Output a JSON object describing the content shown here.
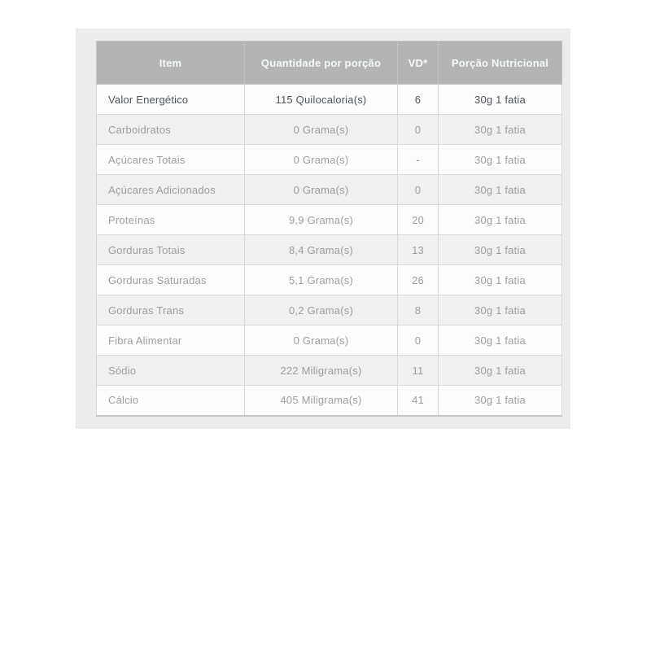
{
  "colors": {
    "page_bg": "#ffffff",
    "panel_bg": "#ececec",
    "header_bg": "#b4b4b4",
    "header_text": "#f2f9f9",
    "row_bg": "#fdfdfd",
    "row_alt_bg": "#f0f0f0",
    "text": "#9b9ea3",
    "emphasis_text": "#4e555d",
    "border": "#d9d9d9",
    "outer_border": "#c6c6c6"
  },
  "table": {
    "columns": [
      {
        "key": "item",
        "label": "Item"
      },
      {
        "key": "quantity",
        "label": "Quantidade por porção"
      },
      {
        "key": "vd",
        "label": "VD*"
      },
      {
        "key": "portion",
        "label": "Porção Nutricional"
      }
    ],
    "rows": [
      {
        "item": "Valor Energético",
        "quantity": "115 Quilocaloria(s)",
        "vd": "6",
        "portion": "30g 1 fatia",
        "emphasis": true
      },
      {
        "item": "Carboidratos",
        "quantity": "0 Grama(s)",
        "vd": "0",
        "portion": "30g 1 fatia"
      },
      {
        "item": "Açúcares Totais",
        "quantity": "0 Grama(s)",
        "vd": "-",
        "portion": "30g 1 fatia"
      },
      {
        "item": "Açúcares Adicionados",
        "quantity": "0 Grama(s)",
        "vd": "0",
        "portion": "30g 1 fatia"
      },
      {
        "item": "Proteínas",
        "quantity": "9,9 Grama(s)",
        "vd": "20",
        "portion": "30g 1 fatia"
      },
      {
        "item": "Gorduras Totais",
        "quantity": "8,4 Grama(s)",
        "vd": "13",
        "portion": "30g 1 fatia"
      },
      {
        "item": "Gorduras Saturadas",
        "quantity": "5,1 Grama(s)",
        "vd": "26",
        "portion": "30g 1 fatia"
      },
      {
        "item": "Gorduras Trans",
        "quantity": "0,2 Grama(s)",
        "vd": "8",
        "portion": "30g 1 fatia"
      },
      {
        "item": "Fibra Alimentar",
        "quantity": "0 Grama(s)",
        "vd": "0",
        "portion": "30g 1 fatia"
      },
      {
        "item": "Sódio",
        "quantity": "222 Miligrama(s)",
        "vd": "11",
        "portion": "30g 1 fatia"
      },
      {
        "item": "Cálcio",
        "quantity": "405 Miligrama(s)",
        "vd": "41",
        "portion": "30g 1 fatia"
      }
    ]
  }
}
